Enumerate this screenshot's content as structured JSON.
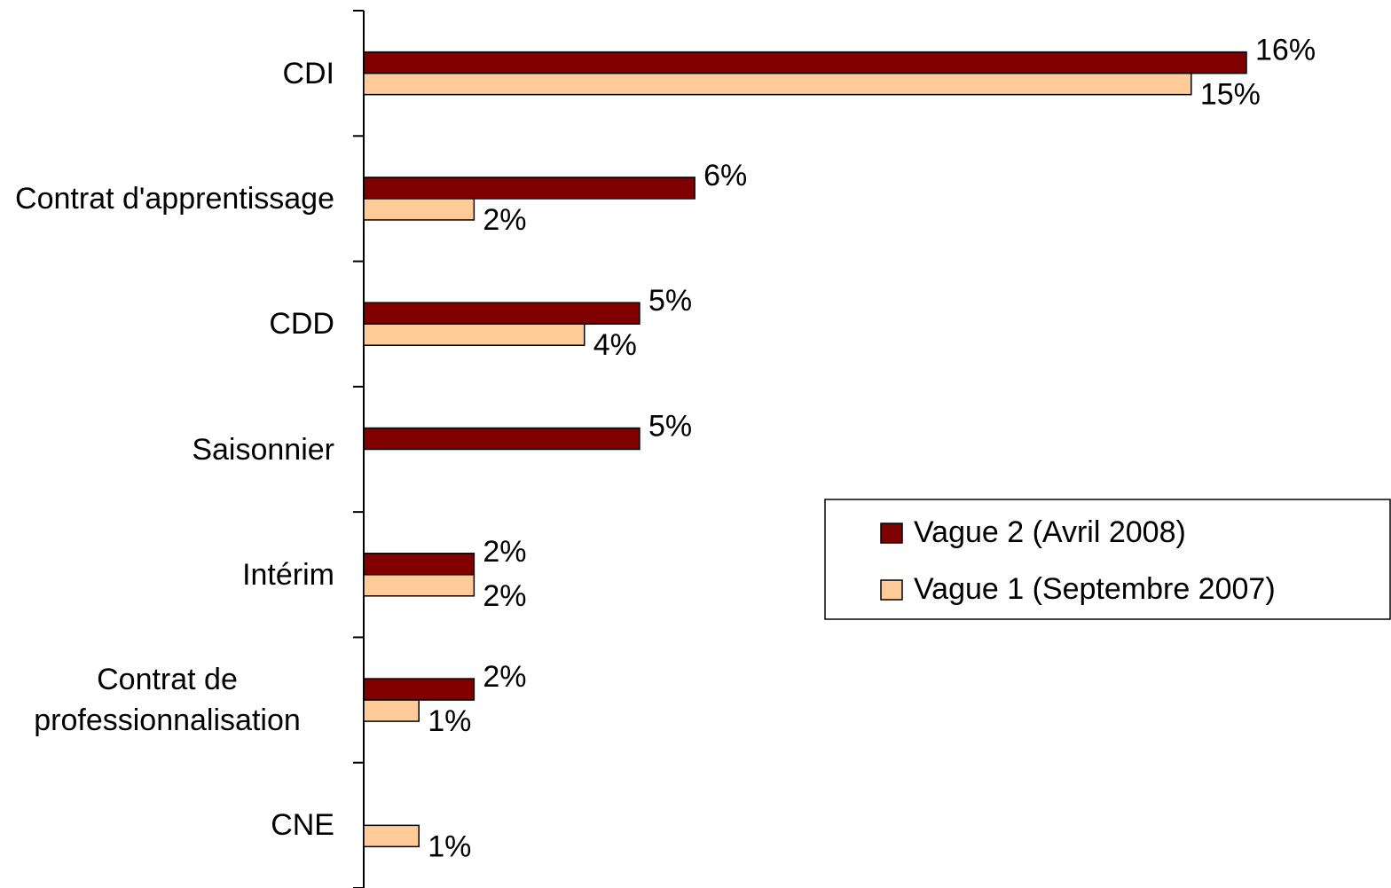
{
  "chart_data": {
    "type": "barh",
    "categories": [
      "CDI",
      "Contrat d'apprentissage",
      "CDD",
      "Saisonnier",
      "Intérim",
      "Contrat de professionnalisation",
      "CNE"
    ],
    "series": [
      {
        "name": "Vague 2 (Avril 2008)",
        "color": "#800000",
        "values": [
          16,
          6,
          5,
          5,
          2,
          2,
          null
        ],
        "value_labels": [
          "16%",
          "6%",
          "5%",
          "5%",
          "2%",
          "2%",
          null
        ]
      },
      {
        "name": "Vague 1 (Septembre 2007)",
        "color": "#FFCC99",
        "values": [
          15,
          2,
          4,
          null,
          2,
          1,
          1
        ],
        "value_labels": [
          "15%",
          "2%",
          "4%",
          null,
          "2%",
          "1%",
          "1%"
        ]
      }
    ],
    "xlim": [
      0,
      16
    ]
  }
}
